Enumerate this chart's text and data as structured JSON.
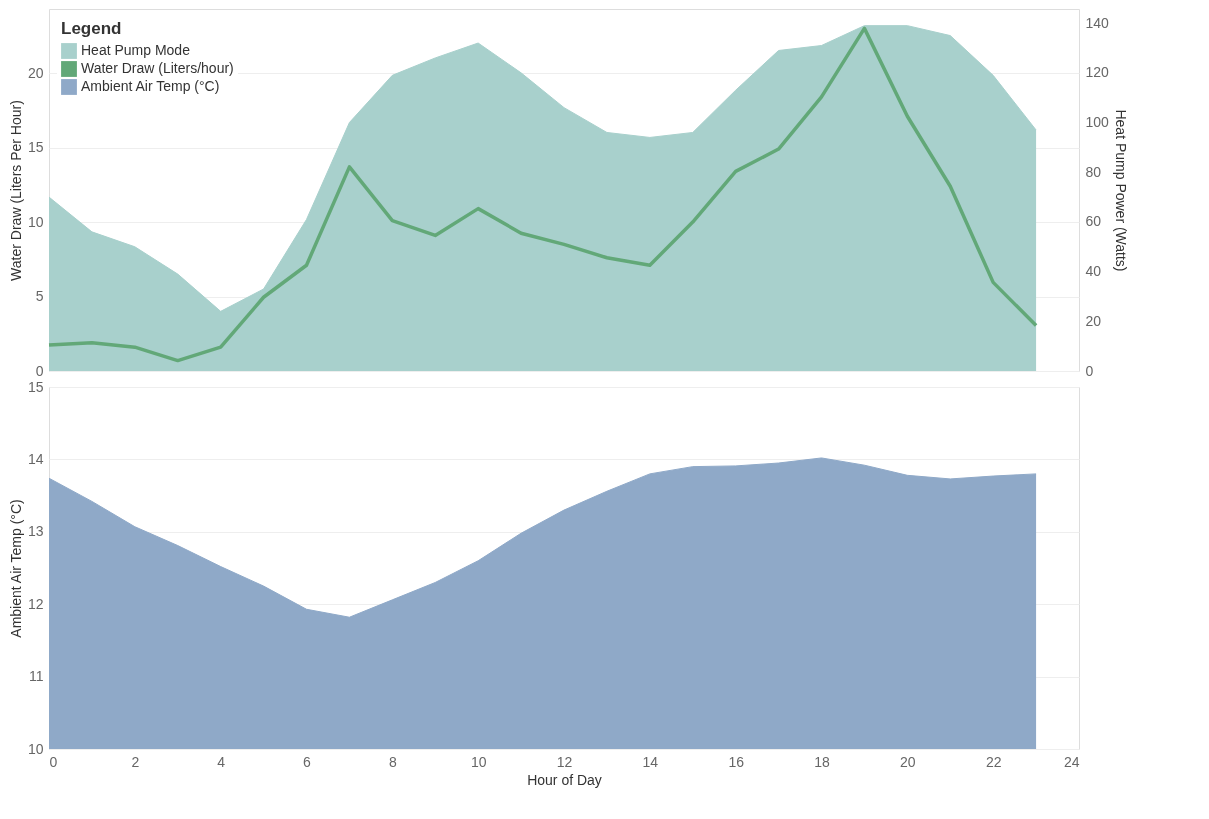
{
  "chart_data": [
    {
      "type": "area",
      "x": [
        0,
        1,
        2,
        3,
        4,
        5,
        6,
        7,
        8,
        9,
        10,
        11,
        12,
        13,
        14,
        15,
        16,
        17,
        18,
        19,
        20,
        21,
        22,
        23
      ],
      "xlim": [
        0,
        24
      ],
      "xticks": [
        0,
        2,
        4,
        6,
        8,
        10,
        12,
        14,
        16,
        18,
        20,
        22,
        24
      ],
      "ylabel": "Water Draw (Liters Per Hour)",
      "y2label": "Heat Pump Power (Watts)",
      "ylim": [
        0,
        24.3
      ],
      "yticks": [
        0,
        5,
        10,
        15,
        20
      ],
      "y2lim": [
        0,
        145.7
      ],
      "y2ticks": [
        0,
        20,
        40,
        60,
        80,
        100,
        120,
        140
      ],
      "grid": "y",
      "tick_labels": "y",
      "legend": "top left",
      "legend_title": "Legend",
      "series": [
        {
          "name": "Heat Pump Mode",
          "axis": "y2",
          "color": "#a8d0cc",
          "values": [
            70,
            56,
            50,
            39,
            24,
            33,
            61,
            100,
            119,
            126,
            132,
            120,
            106,
            96,
            94,
            96,
            113,
            129,
            131,
            139,
            139,
            135,
            119,
            97
          ]
        },
        {
          "name": "Water Draw (Liters/hour)",
          "type": "line",
          "color": "#62a878",
          "values": [
            1.75,
            1.9,
            1.6,
            0.7,
            1.6,
            4.95,
            7.1,
            13.7,
            10.1,
            9.1,
            10.9,
            9.25,
            8.5,
            7.6,
            7.1,
            10.0,
            13.4,
            14.9,
            18.4,
            23.0,
            17.1,
            12.4,
            5.95,
            3.05
          ]
        }
      ]
    },
    {
      "type": "area",
      "x": [
        0,
        1,
        2,
        3,
        4,
        5,
        6,
        7,
        8,
        9,
        10,
        11,
        12,
        13,
        14,
        15,
        16,
        17,
        18,
        19,
        20,
        21,
        22,
        23
      ],
      "xlim": [
        0,
        24
      ],
      "xticks": [
        0,
        2,
        4,
        6,
        8,
        10,
        12,
        14,
        16,
        18,
        20,
        22,
        24
      ],
      "xlabel": "Hour of Day",
      "ylabel": "Ambient Air Temp (°C)",
      "ylim": [
        10,
        15
      ],
      "yticks": [
        10,
        11,
        12,
        13,
        14,
        15
      ],
      "grid": "y",
      "series": [
        {
          "name": "Ambient Air Temp (°C)",
          "color": "#8fa9c8",
          "values": [
            13.74,
            13.42,
            13.07,
            12.81,
            12.52,
            12.25,
            11.93,
            11.82,
            12.06,
            12.3,
            12.6,
            12.98,
            13.3,
            13.56,
            13.8,
            13.9,
            13.91,
            13.95,
            14.02,
            13.92,
            13.78,
            13.73,
            13.77,
            13.8
          ]
        }
      ]
    }
  ]
}
